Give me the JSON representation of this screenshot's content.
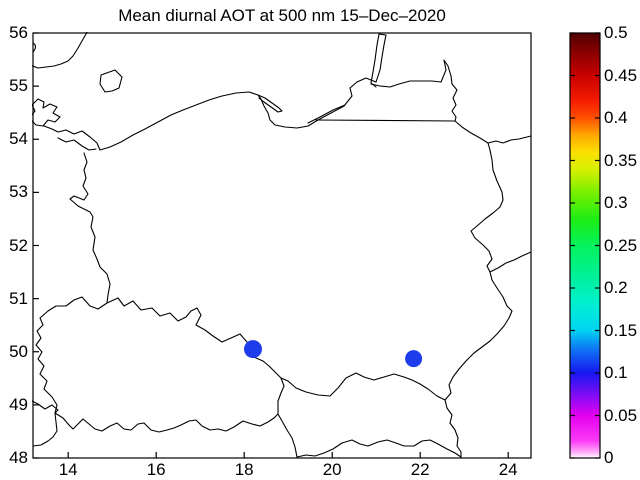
{
  "chart_data": {
    "type": "scatter",
    "subtype": "geographic scatter over country-border map (MATLAB style figure)",
    "title": "Mean diurnal AOT at 500 nm 15–Dec–2020",
    "xlabel": "",
    "ylabel": "",
    "region": "Poland and surrounding borders, Baltic coast",
    "xlim": [
      13.2,
      24.52
    ],
    "ylim": [
      48,
      56
    ],
    "xticks": [
      14,
      16,
      18,
      20,
      22,
      24
    ],
    "yticks": [
      56,
      55,
      54,
      53,
      52,
      51,
      50,
      49,
      48
    ],
    "grid": "off",
    "legend": "none",
    "points": [
      {
        "lon": 18.2,
        "lat": 50.05,
        "aot": 0.1,
        "color": "#1e3cec",
        "radius_px": 9
      },
      {
        "lon": 21.85,
        "lat": 49.87,
        "aot": 0.1,
        "color": "#1e3cec",
        "radius_px": 8.5
      }
    ],
    "colorbar": {
      "min": 0,
      "max": 0.5,
      "ticks": [
        0,
        0.05,
        0.1,
        0.15,
        0.2,
        0.25,
        0.3,
        0.35,
        0.4,
        0.45,
        0.5
      ],
      "tick_labels": [
        "0",
        "0.05",
        "0.1",
        "0.15",
        "0.2",
        "0.25",
        "0.3",
        "0.35",
        "0.4",
        "0.45",
        "0.5"
      ],
      "gradient": [
        {
          "o": 0.0,
          "c": "#ffffff"
        },
        {
          "o": 0.012,
          "c": "#ffb3fb"
        },
        {
          "o": 0.04,
          "c": "#fb3cf6"
        },
        {
          "o": 0.1,
          "c": "#e300ef"
        },
        {
          "o": 0.135,
          "c": "#9a0af4"
        },
        {
          "o": 0.2,
          "c": "#1717f2"
        },
        {
          "o": 0.26,
          "c": "#0f7cf4"
        },
        {
          "o": 0.3,
          "c": "#00d3f2"
        },
        {
          "o": 0.36,
          "c": "#00efd3"
        },
        {
          "o": 0.44,
          "c": "#00f18e"
        },
        {
          "o": 0.5,
          "c": "#04f25c"
        },
        {
          "o": 0.56,
          "c": "#1ced17"
        },
        {
          "o": 0.62,
          "c": "#71ef00"
        },
        {
          "o": 0.68,
          "c": "#d8f000"
        },
        {
          "o": 0.72,
          "c": "#fbe000"
        },
        {
          "o": 0.76,
          "c": "#ffa800"
        },
        {
          "o": 0.8,
          "c": "#ff5000"
        },
        {
          "o": 0.84,
          "c": "#f41c00"
        },
        {
          "o": 0.9,
          "c": "#c80000"
        },
        {
          "o": 0.95,
          "c": "#8f0000"
        },
        {
          "o": 1.0,
          "c": "#500000"
        }
      ]
    },
    "axis_colors": {
      "frame": "#000000",
      "text": "#000000",
      "background": "#ffffff"
    }
  }
}
